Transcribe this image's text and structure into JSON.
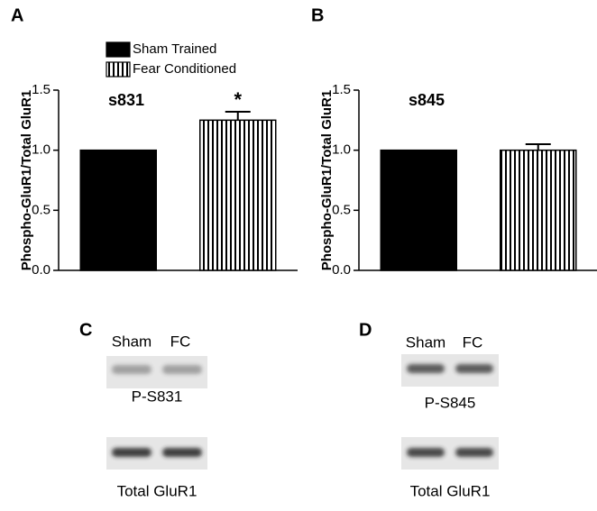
{
  "chart_data": [
    {
      "type": "bar",
      "panel": "A",
      "annotation": "s831",
      "ylabel": "Phospho-GluR1/Total GluR1",
      "ylim": [
        0,
        1.5
      ],
      "yticks": [
        {
          "value": 0,
          "label": "0.0"
        },
        {
          "value": 0.5,
          "label": "0.5"
        },
        {
          "value": 1,
          "label": "1.0"
        },
        {
          "value": 1.5,
          "label": "1.5"
        }
      ],
      "series": [
        {
          "name": "Sham Trained",
          "color": "#000000",
          "pattern": "solid",
          "values": [
            1.0
          ]
        },
        {
          "name": "Fear Conditioned",
          "color": "#000000",
          "pattern": "vertical-stripes",
          "values": [
            1.25
          ],
          "errors": [
            0.07
          ],
          "value_labels": [
            "*"
          ]
        }
      ]
    },
    {
      "type": "bar",
      "panel": "B",
      "annotation": "s845",
      "ylabel": "Phospho-GluR1/Total GluR1",
      "ylim": [
        0,
        1.5
      ],
      "yticks": [
        {
          "value": 0,
          "label": "0.0"
        },
        {
          "value": 0.5,
          "label": "0.5"
        },
        {
          "value": 1,
          "label": "1.0"
        },
        {
          "value": 1.5,
          "label": "1.5"
        }
      ],
      "series": [
        {
          "color": "#000000",
          "pattern": "solid",
          "values": [
            1.0
          ]
        },
        {
          "color": "#000000",
          "pattern": "vertical-stripes",
          "values": [
            1.0
          ],
          "errors": [
            0.05
          ]
        }
      ]
    }
  ],
  "blots": [
    {
      "panel": "C",
      "lanes": [
        "Sham",
        "FC"
      ],
      "rows": [
        "P-S831",
        "Total GluR1"
      ]
    },
    {
      "panel": "D",
      "lanes": [
        "Sham",
        "FC"
      ],
      "rows": [
        "P-S845",
        "Total GluR1"
      ]
    }
  ]
}
